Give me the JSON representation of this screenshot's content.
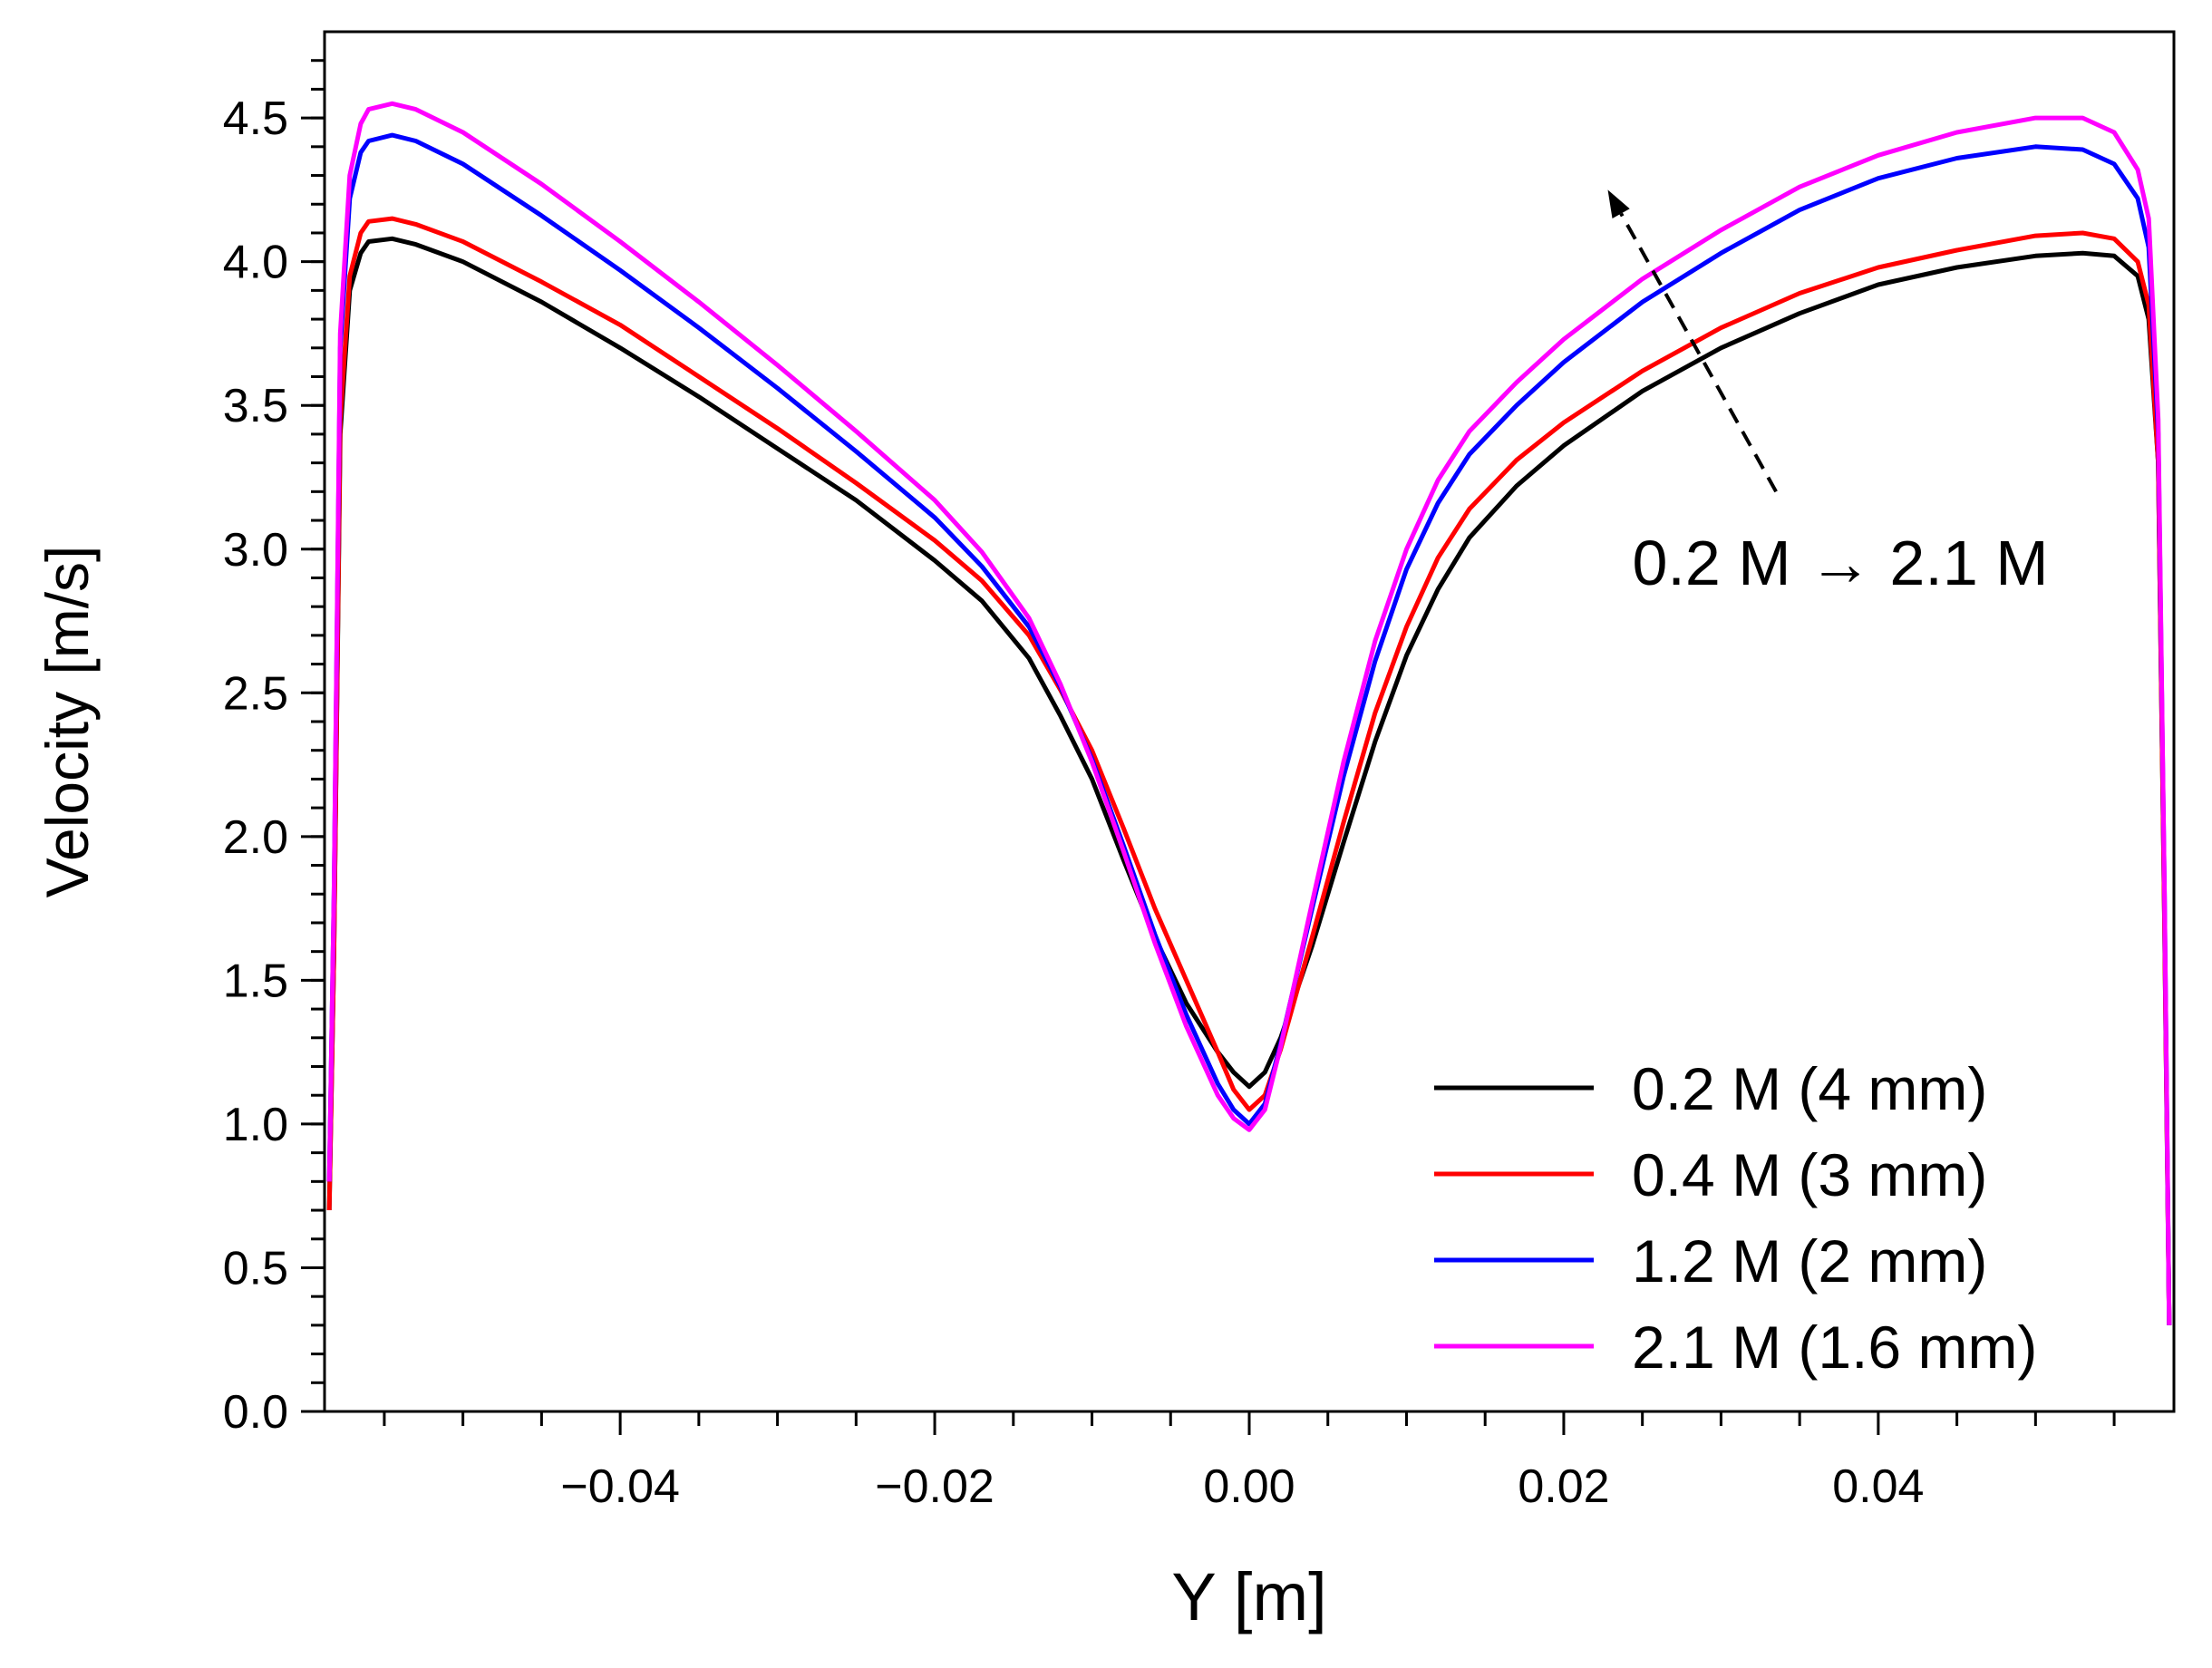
{
  "chart_data": {
    "type": "line",
    "title": "",
    "xlabel": "Y [m]",
    "ylabel": "Velocity [m/s]",
    "xlim": [
      -0.0588,
      0.0588
    ],
    "ylim": [
      0,
      4.8
    ],
    "x_ticks": [
      -0.04,
      -0.02,
      0.0,
      0.02,
      0.04
    ],
    "x_tick_labels": [
      "−0.04",
      "−0.02",
      "0.00",
      "0.02",
      "0.04"
    ],
    "y_ticks": [
      0.0,
      0.5,
      1.0,
      1.5,
      2.0,
      2.5,
      3.0,
      3.5,
      4.0,
      4.5
    ],
    "y_tick_labels": [
      "0.0",
      "0.5",
      "1.0",
      "1.5",
      "2.0",
      "2.5",
      "3.0",
      "3.5",
      "4.0",
      "4.5"
    ],
    "grid": false,
    "legend_position": "bottom-right",
    "annotation": {
      "text": "0.2 M → 2.1 M",
      "arrow_from": [
        0.0335,
        3.2
      ],
      "arrow_to": [
        0.0228,
        4.25
      ]
    },
    "series": [
      {
        "name": "0.2 M (4 mm)",
        "color": "#000000",
        "x": [
          -0.0585,
          -0.0582,
          -0.0578,
          -0.0572,
          -0.0565,
          -0.056,
          -0.0545,
          -0.053,
          -0.05,
          -0.045,
          -0.04,
          -0.035,
          -0.03,
          -0.025,
          -0.02,
          -0.017,
          -0.014,
          -0.012,
          -0.01,
          -0.008,
          -0.006,
          -0.004,
          -0.002,
          -0.001,
          0.0,
          0.001,
          0.002,
          0.004,
          0.006,
          0.008,
          0.01,
          0.012,
          0.014,
          0.017,
          0.02,
          0.025,
          0.03,
          0.035,
          0.04,
          0.045,
          0.05,
          0.053,
          0.055,
          0.0565,
          0.0572,
          0.0578,
          0.0582,
          0.0585
        ],
        "y": [
          0.7,
          1.6,
          3.4,
          3.9,
          4.03,
          4.07,
          4.08,
          4.06,
          4.0,
          3.86,
          3.7,
          3.53,
          3.35,
          3.17,
          2.96,
          2.82,
          2.62,
          2.42,
          2.2,
          1.92,
          1.65,
          1.42,
          1.25,
          1.18,
          1.13,
          1.18,
          1.3,
          1.62,
          1.98,
          2.33,
          2.63,
          2.86,
          3.04,
          3.22,
          3.36,
          3.55,
          3.7,
          3.82,
          3.92,
          3.98,
          4.02,
          4.03,
          4.02,
          3.95,
          3.8,
          3.3,
          1.7,
          0.3
        ]
      },
      {
        "name": "0.4 M (3 mm)",
        "color": "#ff0000",
        "x": [
          -0.0585,
          -0.0582,
          -0.0578,
          -0.0572,
          -0.0565,
          -0.056,
          -0.0545,
          -0.053,
          -0.05,
          -0.045,
          -0.04,
          -0.035,
          -0.03,
          -0.025,
          -0.02,
          -0.017,
          -0.014,
          -0.012,
          -0.01,
          -0.008,
          -0.006,
          -0.004,
          -0.002,
          -0.001,
          0.0,
          0.001,
          0.002,
          0.004,
          0.006,
          0.008,
          0.01,
          0.012,
          0.014,
          0.017,
          0.02,
          0.025,
          0.03,
          0.035,
          0.04,
          0.045,
          0.05,
          0.053,
          0.055,
          0.0565,
          0.0572,
          0.0578,
          0.0582,
          0.0585
        ],
        "y": [
          0.7,
          1.6,
          3.45,
          3.95,
          4.1,
          4.14,
          4.15,
          4.13,
          4.07,
          3.93,
          3.78,
          3.6,
          3.42,
          3.23,
          3.03,
          2.89,
          2.7,
          2.51,
          2.3,
          2.03,
          1.75,
          1.5,
          1.25,
          1.12,
          1.05,
          1.1,
          1.26,
          1.65,
          2.05,
          2.43,
          2.73,
          2.97,
          3.14,
          3.31,
          3.44,
          3.62,
          3.77,
          3.89,
          3.98,
          4.04,
          4.09,
          4.1,
          4.08,
          4.0,
          3.85,
          3.3,
          1.7,
          0.3
        ]
      },
      {
        "name": "1.2 M (2 mm)",
        "color": "#0000ff",
        "x": [
          -0.0585,
          -0.0582,
          -0.0578,
          -0.0572,
          -0.0565,
          -0.056,
          -0.0545,
          -0.053,
          -0.05,
          -0.045,
          -0.04,
          -0.035,
          -0.03,
          -0.025,
          -0.02,
          -0.017,
          -0.014,
          -0.012,
          -0.01,
          -0.008,
          -0.006,
          -0.004,
          -0.002,
          -0.001,
          0.0,
          0.001,
          0.002,
          0.004,
          0.006,
          0.008,
          0.01,
          0.012,
          0.014,
          0.017,
          0.02,
          0.025,
          0.03,
          0.035,
          0.04,
          0.045,
          0.05,
          0.053,
          0.055,
          0.0565,
          0.0572,
          0.0578,
          0.0582,
          0.0585
        ],
        "y": [
          0.8,
          1.8,
          3.7,
          4.22,
          4.38,
          4.42,
          4.44,
          4.42,
          4.34,
          4.16,
          3.97,
          3.77,
          3.56,
          3.34,
          3.11,
          2.94,
          2.73,
          2.52,
          2.27,
          1.97,
          1.66,
          1.38,
          1.14,
          1.05,
          1.0,
          1.07,
          1.28,
          1.75,
          2.21,
          2.61,
          2.93,
          3.16,
          3.33,
          3.5,
          3.65,
          3.86,
          4.03,
          4.18,
          4.29,
          4.36,
          4.4,
          4.39,
          4.34,
          4.22,
          4.05,
          3.4,
          1.8,
          0.3
        ]
      },
      {
        "name": "2.1 M (1.6 mm)",
        "color": "#ff00ff",
        "x": [
          -0.0585,
          -0.0582,
          -0.0578,
          -0.0572,
          -0.0565,
          -0.056,
          -0.0545,
          -0.053,
          -0.05,
          -0.045,
          -0.04,
          -0.035,
          -0.03,
          -0.025,
          -0.02,
          -0.017,
          -0.014,
          -0.012,
          -0.01,
          -0.008,
          -0.006,
          -0.004,
          -0.002,
          -0.001,
          0.0,
          0.001,
          0.002,
          0.004,
          0.006,
          0.008,
          0.01,
          0.012,
          0.014,
          0.017,
          0.02,
          0.025,
          0.03,
          0.035,
          0.04,
          0.045,
          0.05,
          0.053,
          0.055,
          0.0565,
          0.0572,
          0.0578,
          0.0582,
          0.0585
        ],
        "y": [
          0.8,
          1.8,
          3.75,
          4.3,
          4.48,
          4.53,
          4.55,
          4.53,
          4.45,
          4.27,
          4.07,
          3.86,
          3.64,
          3.41,
          3.17,
          2.99,
          2.76,
          2.53,
          2.26,
          1.95,
          1.63,
          1.34,
          1.1,
          1.02,
          0.98,
          1.05,
          1.27,
          1.77,
          2.26,
          2.68,
          3.0,
          3.24,
          3.41,
          3.58,
          3.73,
          3.94,
          4.11,
          4.26,
          4.37,
          4.45,
          4.5,
          4.5,
          4.45,
          4.32,
          4.15,
          3.45,
          1.8,
          0.3
        ]
      }
    ]
  }
}
